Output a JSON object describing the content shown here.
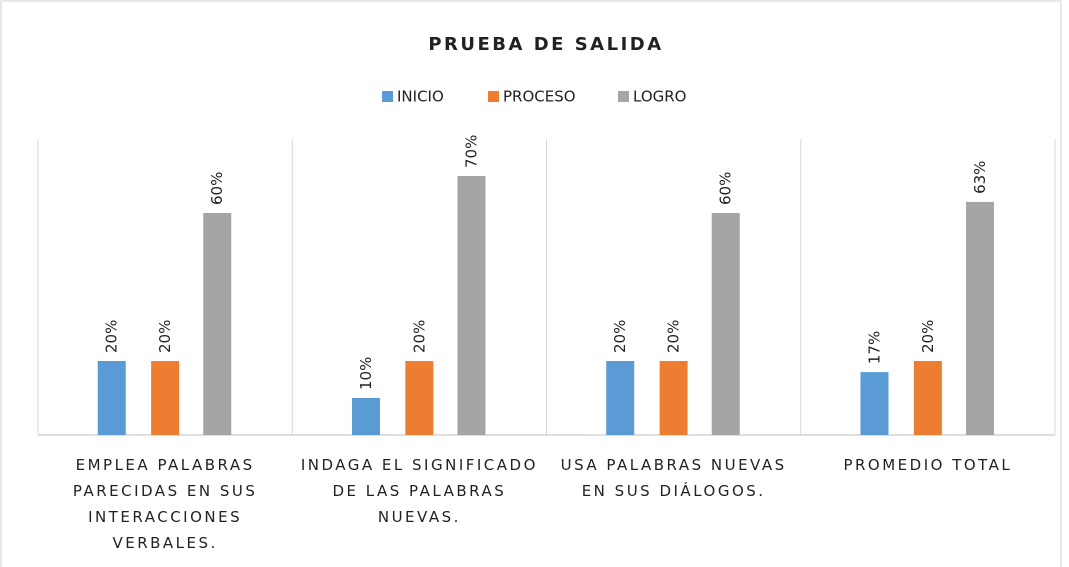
{
  "chart_data": {
    "type": "bar",
    "title": "PRUEBA DE SALIDA",
    "categories": [
      "EMPLEA PALABRAS PARECIDAS EN SUS INTERACCIONES VERBALES.",
      "INDAGA EL SIGNIFICADO DE LAS PALABRAS NUEVAS.",
      "USA PALABRAS NUEVAS EN SUS DIÁLOGOS.",
      "PROMEDIO TOTAL"
    ],
    "series": [
      {
        "name": "INICIO",
        "color": "#5b9bd5",
        "values": [
          20,
          10,
          20,
          17
        ],
        "value_labels": [
          "20%",
          "10%",
          "20%",
          "17%"
        ]
      },
      {
        "name": "PROCESO",
        "color": "#ed7d31",
        "values": [
          20,
          20,
          20,
          20
        ],
        "value_labels": [
          "20%",
          "20%",
          "20%",
          "20%"
        ]
      },
      {
        "name": "LOGRO",
        "color": "#a5a5a5",
        "values": [
          60,
          70,
          60,
          63
        ],
        "value_labels": [
          "60%",
          "70%",
          "60%",
          "63%"
        ]
      }
    ],
    "ylim": [
      0,
      80
    ],
    "legend": "top"
  }
}
